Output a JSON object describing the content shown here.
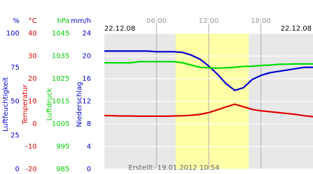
{
  "chart_data": {
    "type": "line",
    "date_left": "22.12.08",
    "date_right": "22.12.08",
    "footer": "Erstellt: 19.01.2012 10:54",
    "xlim": [
      0,
      24
    ],
    "xticks": [
      {
        "value": 6,
        "label": "06:00"
      },
      {
        "value": 12,
        "label": "12:00"
      },
      {
        "value": 18,
        "label": "18:00"
      }
    ],
    "daylight": [
      8.2,
      16.6
    ],
    "grid": true,
    "x": [
      0,
      1,
      2,
      3,
      4,
      5,
      6,
      7,
      8,
      9,
      10,
      11,
      12,
      13,
      14,
      15,
      16,
      17,
      18,
      19,
      20,
      21,
      22,
      23,
      24
    ],
    "axes": [
      {
        "unit": "%",
        "title": "Luftfeuchtigkeit",
        "color": "#0000cc",
        "lim": [
          0,
          100
        ],
        "ticks": [
          100,
          75,
          50,
          25,
          0
        ]
      },
      {
        "unit": "°C",
        "title": "Temperatur",
        "color": "#dd0000",
        "lim": [
          -20,
          40
        ],
        "ticks": [
          40,
          30,
          20,
          10,
          0,
          -10,
          -20
        ]
      },
      {
        "unit": "hPa",
        "title": "Luftdruck",
        "color": "#00cc00",
        "lim": [
          985,
          1045
        ],
        "ticks": [
          1045,
          1035,
          1025,
          1015,
          1005,
          995,
          985
        ]
      },
      {
        "unit": "mm/h",
        "title": "Niederschlag",
        "color": "#0000cc",
        "lim": [
          0,
          24
        ],
        "ticks": [
          24,
          20,
          16,
          12,
          8,
          4,
          0
        ]
      }
    ],
    "series": [
      {
        "axis": 0,
        "color": "#0000cc",
        "values": [
          87,
          87,
          87,
          87,
          87,
          87,
          86.5,
          86.5,
          86.5,
          86,
          84,
          81,
          76,
          70,
          63,
          58,
          60,
          66,
          69,
          71,
          72,
          73,
          74,
          75,
          75
        ]
      },
      {
        "axis": 1,
        "color": "#dd0000",
        "values": [
          3.7,
          3.6,
          3.5,
          3.5,
          3.4,
          3.4,
          3.4,
          3.4,
          3.5,
          3.6,
          3.8,
          4.2,
          5,
          6.2,
          7.5,
          8.7,
          7.6,
          6.4,
          5.8,
          5.4,
          5,
          4.6,
          4.2,
          3.6,
          3.2
        ]
      },
      {
        "axis": 2,
        "color": "#00dd00",
        "values": [
          1032,
          1032,
          1032,
          1032,
          1032.5,
          1032.5,
          1032.5,
          1032.5,
          1032.5,
          1032,
          1031,
          1030,
          1029.8,
          1029.6,
          1029.8,
          1030,
          1030.4,
          1030.5,
          1030.8,
          1031,
          1031.3,
          1031.4,
          1031.5,
          1031.5,
          1031.5
        ]
      }
    ]
  }
}
